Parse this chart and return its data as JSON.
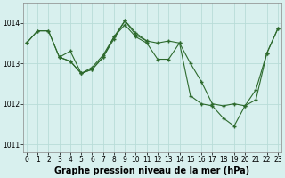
{
  "xlabel": "Graphe pression niveau de la mer (hPa)",
  "bg_color": "#d8f0ee",
  "grid_color": "#b8dcd8",
  "line_color": "#2d6a2d",
  "marker_color": "#2d6a2d",
  "xlim": [
    -0.3,
    23.3
  ],
  "ylim": [
    1010.8,
    1014.5
  ],
  "yticks": [
    1011,
    1012,
    1013,
    1014
  ],
  "xticks": [
    0,
    1,
    2,
    3,
    4,
    5,
    6,
    7,
    8,
    9,
    10,
    11,
    12,
    13,
    14,
    15,
    16,
    17,
    18,
    19,
    20,
    21,
    22,
    23
  ],
  "series1": [
    [
      0,
      1013.5
    ],
    [
      1,
      1013.8
    ],
    [
      2,
      1013.8
    ],
    [
      3,
      1013.15
    ],
    [
      4,
      1013.05
    ],
    [
      5,
      1012.75
    ],
    [
      6,
      1012.85
    ],
    [
      7,
      1013.15
    ],
    [
      8,
      1013.6
    ],
    [
      9,
      1014.05
    ],
    [
      10,
      1013.75
    ],
    [
      11,
      1013.55
    ]
  ],
  "series2": [
    [
      0,
      1013.5
    ],
    [
      1,
      1013.8
    ],
    [
      2,
      1013.8
    ],
    [
      3,
      1013.15
    ],
    [
      4,
      1013.3
    ],
    [
      5,
      1012.75
    ],
    [
      6,
      1012.85
    ],
    [
      7,
      1013.15
    ],
    [
      8,
      1013.65
    ],
    [
      9,
      1013.95
    ],
    [
      10,
      1013.65
    ],
    [
      11,
      1013.5
    ],
    [
      12,
      1013.1
    ],
    [
      13,
      1013.1
    ],
    [
      14,
      1013.5
    ],
    [
      15,
      1012.2
    ],
    [
      16,
      1012.0
    ],
    [
      17,
      1011.95
    ],
    [
      18,
      1011.65
    ],
    [
      19,
      1011.45
    ],
    [
      20,
      1011.95
    ],
    [
      21,
      1012.35
    ],
    [
      22,
      1013.25
    ],
    [
      23,
      1013.85
    ]
  ],
  "series3": [
    [
      3,
      1013.15
    ],
    [
      4,
      1013.05
    ],
    [
      5,
      1012.75
    ],
    [
      6,
      1012.9
    ],
    [
      7,
      1013.2
    ],
    [
      8,
      1013.65
    ],
    [
      9,
      1014.05
    ],
    [
      10,
      1013.7
    ],
    [
      11,
      1013.55
    ],
    [
      12,
      1013.5
    ],
    [
      13,
      1013.55
    ],
    [
      14,
      1013.5
    ],
    [
      15,
      1013.0
    ],
    [
      16,
      1012.55
    ],
    [
      17,
      1012.0
    ],
    [
      18,
      1011.95
    ],
    [
      19,
      1012.0
    ],
    [
      20,
      1011.95
    ],
    [
      21,
      1012.1
    ],
    [
      22,
      1013.25
    ],
    [
      23,
      1013.85
    ]
  ],
  "xlabel_fontsize": 7,
  "tick_fontsize": 5.5,
  "figsize": [
    3.2,
    2.0
  ],
  "dpi": 100
}
